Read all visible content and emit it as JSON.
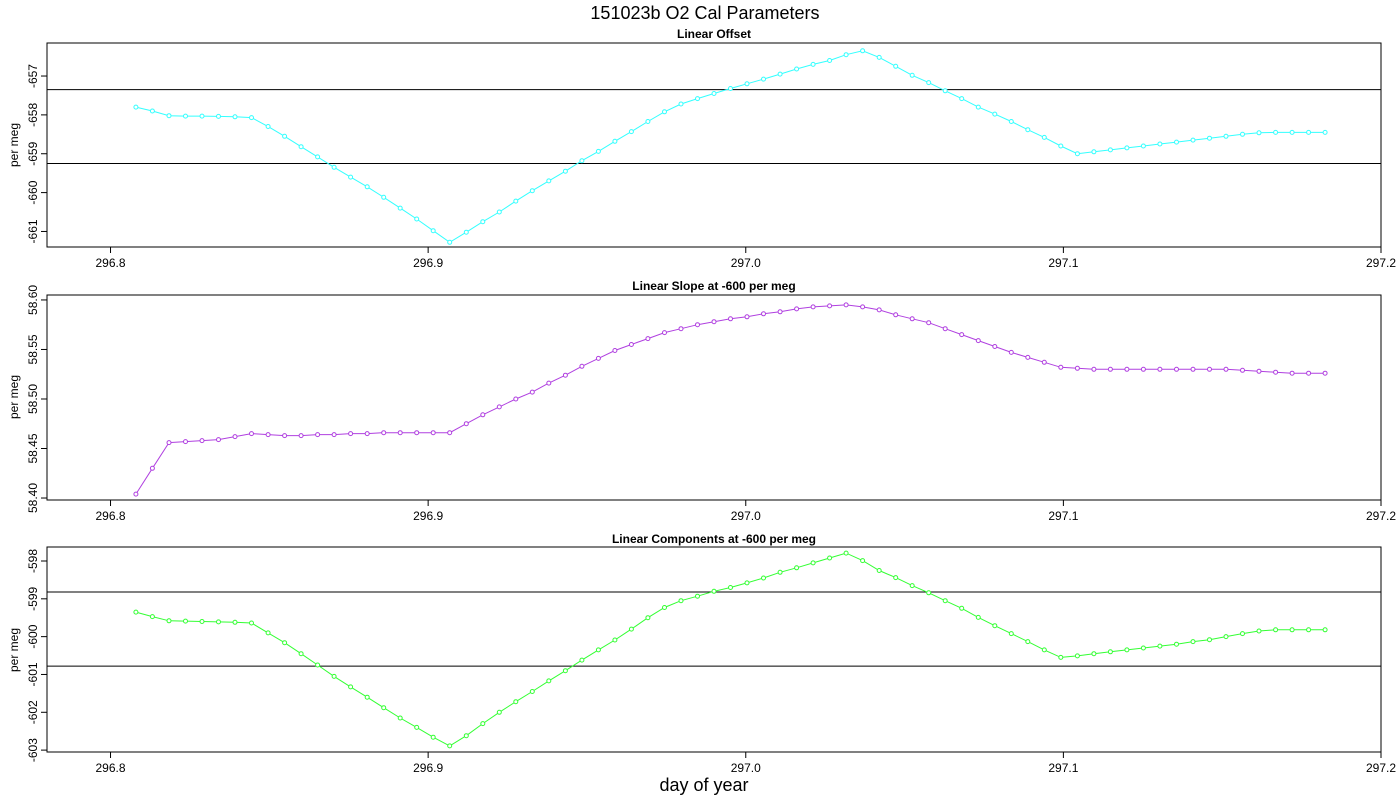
{
  "figure": {
    "title": "151023b   O2 Cal Parameters",
    "xlabel": "day of year"
  },
  "chart_data": [
    {
      "type": "line",
      "title": "Linear Offset",
      "ylabel": "per meg",
      "color": "#33ffff",
      "xlim": [
        296.78,
        297.2
      ],
      "ylim": [
        -661.4,
        -656.15
      ],
      "xticks": [
        296.8,
        296.9,
        297.0,
        297.1,
        297.2
      ],
      "xtick_labels": [
        "296.8",
        "296.9",
        "297.0",
        "297.1",
        "297.2"
      ],
      "yticks": [
        -657,
        -658,
        -659,
        -660,
        -661
      ],
      "ytick_labels": [
        "-657",
        "-658",
        "-659",
        "-660",
        "-661"
      ],
      "hlines": [
        -657.35,
        -659.25
      ],
      "x": [
        296.808,
        296.8132,
        296.8184,
        296.8236,
        296.8288,
        296.834,
        296.8392,
        296.8444,
        296.8496,
        296.8548,
        296.86,
        296.8652,
        296.8704,
        296.8756,
        296.8808,
        296.886,
        296.8912,
        296.8964,
        296.9016,
        296.9068,
        296.912,
        296.9172,
        296.9224,
        296.9276,
        296.9328,
        296.938,
        296.9432,
        296.9484,
        296.9536,
        296.9588,
        296.964,
        296.9692,
        296.9744,
        296.9796,
        296.9848,
        296.99,
        296.9952,
        297.0004,
        297.0056,
        297.0108,
        297.016,
        297.0212,
        297.0264,
        297.0316,
        297.0368,
        297.042,
        297.0472,
        297.0524,
        297.0576,
        297.0628,
        297.068,
        297.0732,
        297.0784,
        297.0836,
        297.0888,
        297.094,
        297.0992,
        297.1044,
        297.1096,
        297.1148,
        297.12,
        297.1252,
        297.1304,
        297.1356,
        297.1408,
        297.146,
        297.1512,
        297.1564,
        297.1616,
        297.1668,
        297.172,
        297.1772,
        297.1824
      ],
      "values": [
        -657.8,
        -657.9,
        -658.02,
        -658.03,
        -658.03,
        -658.04,
        -658.05,
        -658.07,
        -658.3,
        -658.55,
        -658.82,
        -659.08,
        -659.35,
        -659.6,
        -659.85,
        -660.12,
        -660.4,
        -660.68,
        -660.98,
        -661.28,
        -661.02,
        -660.75,
        -660.5,
        -660.22,
        -659.95,
        -659.7,
        -659.45,
        -659.18,
        -658.94,
        -658.68,
        -658.43,
        -658.17,
        -657.92,
        -657.72,
        -657.58,
        -657.45,
        -657.32,
        -657.2,
        -657.08,
        -656.95,
        -656.82,
        -656.7,
        -656.6,
        -656.45,
        -656.35,
        -656.52,
        -656.75,
        -656.98,
        -657.17,
        -657.38,
        -657.58,
        -657.8,
        -657.98,
        -658.17,
        -658.38,
        -658.58,
        -658.8,
        -659.0,
        -658.95,
        -658.9,
        -658.85,
        -658.8,
        -658.75,
        -658.7,
        -658.65,
        -658.6,
        -658.55,
        -658.5,
        -658.46,
        -658.45,
        -658.45,
        -658.45,
        -658.45
      ]
    },
    {
      "type": "line",
      "title": "Linear Slope at -600 per meg",
      "ylabel": "per meg",
      "color": "#b040e0",
      "xlim": [
        296.78,
        297.2
      ],
      "ylim": [
        58.398,
        58.605
      ],
      "xticks": [
        296.8,
        296.9,
        297.0,
        297.1,
        297.2
      ],
      "xtick_labels": [
        "296.8",
        "296.9",
        "297.0",
        "297.1",
        "297.2"
      ],
      "yticks": [
        58.6,
        58.55,
        58.5,
        58.45,
        58.4
      ],
      "ytick_labels": [
        "58.60",
        "58.55",
        "58.50",
        "58.45",
        "58.40"
      ],
      "hlines": [],
      "x": [
        296.808,
        296.8132,
        296.8184,
        296.8236,
        296.8288,
        296.834,
        296.8392,
        296.8444,
        296.8496,
        296.8548,
        296.86,
        296.8652,
        296.8704,
        296.8756,
        296.8808,
        296.886,
        296.8912,
        296.8964,
        296.9016,
        296.9068,
        296.912,
        296.9172,
        296.9224,
        296.9276,
        296.9328,
        296.938,
        296.9432,
        296.9484,
        296.9536,
        296.9588,
        296.964,
        296.9692,
        296.9744,
        296.9796,
        296.9848,
        296.99,
        296.9952,
        297.0004,
        297.0056,
        297.0108,
        297.016,
        297.0212,
        297.0264,
        297.0316,
        297.0368,
        297.042,
        297.0472,
        297.0524,
        297.0576,
        297.0628,
        297.068,
        297.0732,
        297.0784,
        297.0836,
        297.0888,
        297.094,
        297.0992,
        297.1044,
        297.1096,
        297.1148,
        297.12,
        297.1252,
        297.1304,
        297.1356,
        297.1408,
        297.146,
        297.1512,
        297.1564,
        297.1616,
        297.1668,
        297.172,
        297.1772,
        297.1824
      ],
      "values": [
        58.404,
        58.43,
        58.456,
        58.457,
        58.458,
        58.459,
        58.462,
        58.465,
        58.464,
        58.463,
        58.463,
        58.464,
        58.464,
        58.465,
        58.465,
        58.466,
        58.466,
        58.466,
        58.466,
        58.466,
        58.475,
        58.484,
        58.492,
        58.5,
        58.507,
        58.516,
        58.524,
        58.533,
        58.541,
        58.549,
        58.555,
        58.561,
        58.567,
        58.571,
        58.575,
        58.578,
        58.581,
        58.583,
        58.586,
        58.588,
        58.591,
        58.593,
        58.594,
        58.595,
        58.593,
        58.59,
        58.585,
        58.581,
        58.577,
        58.571,
        58.565,
        58.559,
        58.553,
        58.547,
        58.542,
        58.537,
        58.532,
        58.531,
        58.53,
        58.53,
        58.53,
        58.53,
        58.53,
        58.53,
        58.53,
        58.53,
        58.53,
        58.529,
        58.528,
        58.527,
        58.526,
        58.526,
        58.526
      ]
    },
    {
      "type": "line",
      "title": "Linear Components at -600 per meg",
      "ylabel": "per meg",
      "color": "#33ff33",
      "xlim": [
        296.78,
        297.2
      ],
      "ylim": [
        -603.05,
        -597.63
      ],
      "xticks": [
        296.8,
        296.9,
        297.0,
        297.1,
        297.2
      ],
      "xtick_labels": [
        "296.8",
        "296.9",
        "297.0",
        "297.1",
        "297.2"
      ],
      "yticks": [
        -598,
        -599,
        -600,
        -601,
        -602,
        -603
      ],
      "ytick_labels": [
        "-598",
        "-599",
        "-600",
        "-601",
        "-602",
        "-603"
      ],
      "hlines": [
        -598.82,
        -600.78
      ],
      "x": [
        296.808,
        296.8132,
        296.8184,
        296.8236,
        296.8288,
        296.834,
        296.8392,
        296.8444,
        296.8496,
        296.8548,
        296.86,
        296.8652,
        296.8704,
        296.8756,
        296.8808,
        296.886,
        296.8912,
        296.8964,
        296.9016,
        296.9068,
        296.912,
        296.9172,
        296.9224,
        296.9276,
        296.9328,
        296.938,
        296.9432,
        296.9484,
        296.9536,
        296.9588,
        296.964,
        296.9692,
        296.9744,
        296.9796,
        296.9848,
        296.99,
        296.9952,
        297.0004,
        297.0056,
        297.0108,
        297.016,
        297.0212,
        297.0264,
        297.0316,
        297.0368,
        297.042,
        297.0472,
        297.0524,
        297.0576,
        297.0628,
        297.068,
        297.0732,
        297.0784,
        297.0836,
        297.0888,
        297.094,
        297.0992,
        297.1044,
        297.1096,
        297.1148,
        297.12,
        297.1252,
        297.1304,
        297.1356,
        297.1408,
        297.146,
        297.1512,
        297.1564,
        297.1616,
        297.1668,
        297.172,
        297.1772,
        297.1824
      ],
      "values": [
        -599.35,
        -599.47,
        -599.58,
        -599.59,
        -599.6,
        -599.61,
        -599.62,
        -599.64,
        -599.9,
        -600.16,
        -600.45,
        -600.75,
        -601.05,
        -601.33,
        -601.6,
        -601.88,
        -602.15,
        -602.4,
        -602.66,
        -602.89,
        -602.62,
        -602.3,
        -602.0,
        -601.72,
        -601.45,
        -601.17,
        -600.9,
        -600.62,
        -600.35,
        -600.09,
        -599.8,
        -599.5,
        -599.23,
        -599.05,
        -598.93,
        -598.8,
        -598.7,
        -598.58,
        -598.45,
        -598.3,
        -598.18,
        -598.05,
        -597.92,
        -597.79,
        -597.99,
        -598.25,
        -598.44,
        -598.65,
        -598.84,
        -599.05,
        -599.25,
        -599.49,
        -599.71,
        -599.92,
        -600.13,
        -600.35,
        -600.55,
        -600.51,
        -600.45,
        -600.4,
        -600.35,
        -600.3,
        -600.25,
        -600.2,
        -600.13,
        -600.08,
        -600.0,
        -599.92,
        -599.85,
        -599.82,
        -599.82,
        -599.82,
        -599.82
      ]
    }
  ]
}
